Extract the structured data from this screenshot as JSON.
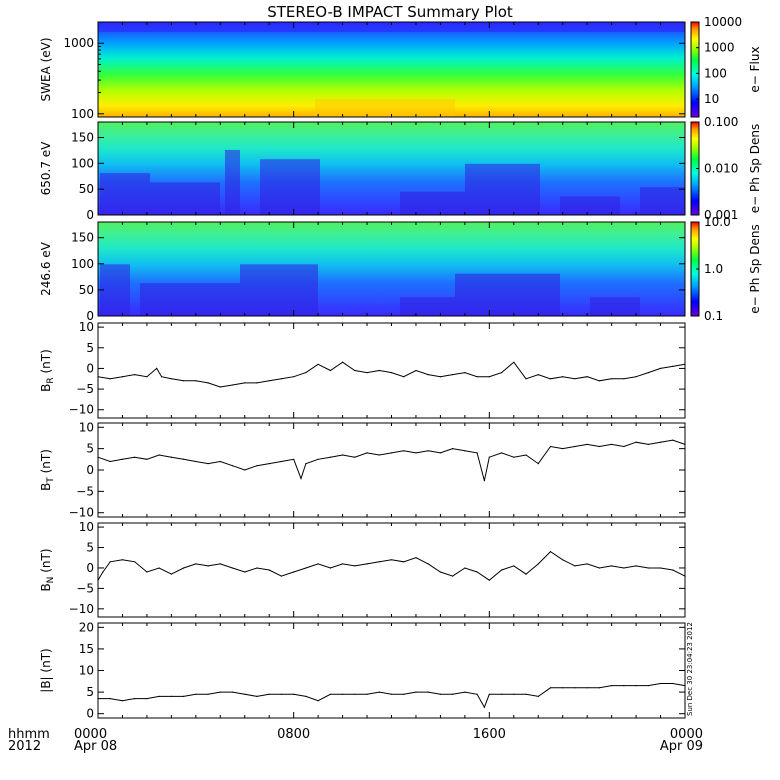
{
  "title": "STEREO-B IMPACT Summary Plot",
  "x_axis": {
    "row1_label": "hhmm",
    "row2_label": "2012",
    "ticks": [
      {
        "t": 0,
        "time": "0000",
        "date": "Apr 08"
      },
      {
        "t": 8,
        "time": "0800",
        "date": ""
      },
      {
        "t": 16,
        "time": "1600",
        "date": ""
      },
      {
        "t": 24,
        "time": "0000",
        "date": "Apr 09"
      }
    ]
  },
  "stamp": "Sun Dec 30 23:04:23 2012",
  "colors": {
    "line": "#000000",
    "frame": "#000000"
  },
  "chart_data": [
    {
      "type": "heatmap",
      "id": "swea",
      "ylabel": "SWEA (eV)",
      "y_scale": "log",
      "ylim": [
        90,
        2000
      ],
      "yticks": [
        {
          "v": 100,
          "label": "100"
        },
        {
          "v": 1000,
          "label": "1000"
        }
      ],
      "colorbar": {
        "label": "e− Flux",
        "scale": "log",
        "range": [
          2,
          10000
        ],
        "ticks": [
          {
            "v": 10,
            "label": "10"
          },
          {
            "v": 100,
            "label": "100"
          },
          {
            "v": 1000,
            "label": "1000"
          },
          {
            "v": 10000,
            "label": "10000"
          }
        ]
      }
    },
    {
      "type": "heatmap",
      "id": "pad650",
      "ylabel": "650.7 eV",
      "y_scale": "linear",
      "ylim": [
        0,
        180
      ],
      "yticks": [
        {
          "v": 0,
          "label": "0"
        },
        {
          "v": 50,
          "label": "50"
        },
        {
          "v": 100,
          "label": "100"
        },
        {
          "v": 150,
          "label": "150"
        }
      ],
      "colorbar": {
        "label": "e− Ph Sp Dens",
        "scale": "log",
        "range": [
          0.001,
          0.1
        ],
        "ticks": [
          {
            "v": 0.001,
            "label": "0.001"
          },
          {
            "v": 0.01,
            "label": "0.010"
          },
          {
            "v": 0.1,
            "label": "0.100"
          }
        ]
      }
    },
    {
      "type": "heatmap",
      "id": "pad246",
      "ylabel": "246.6 eV",
      "y_scale": "linear",
      "ylim": [
        0,
        180
      ],
      "yticks": [
        {
          "v": 0,
          "label": "0"
        },
        {
          "v": 50,
          "label": "50"
        },
        {
          "v": 100,
          "label": "100"
        },
        {
          "v": 150,
          "label": "150"
        }
      ],
      "colorbar": {
        "label": "e− Ph Sp Dens",
        "scale": "log",
        "range": [
          0.1,
          10
        ],
        "ticks": [
          {
            "v": 0.1,
            "label": "0.1"
          },
          {
            "v": 1,
            "label": "1.0"
          },
          {
            "v": 10,
            "label": "10.0"
          }
        ]
      }
    },
    {
      "type": "line",
      "id": "br",
      "ylabel_main": "B",
      "ylabel_sub": "R",
      "ylabel_unit": " (nT)",
      "ylim": [
        -12,
        11
      ],
      "yticks": [
        {
          "v": -10,
          "label": "−10"
        },
        {
          "v": -5,
          "label": "−5"
        },
        {
          "v": 0,
          "label": "0"
        },
        {
          "v": 5,
          "label": "5"
        },
        {
          "v": 10,
          "label": "10"
        }
      ],
      "x": [
        0,
        0.5,
        1,
        1.5,
        2,
        2.4,
        2.6,
        3,
        3.5,
        4,
        4.5,
        5,
        5.5,
        6,
        6.5,
        7,
        7.5,
        8,
        8.5,
        9,
        9.5,
        10,
        10.5,
        11,
        11.5,
        12,
        12.5,
        13,
        13.5,
        14,
        14.5,
        15,
        15.5,
        16,
        16.5,
        17,
        17.5,
        18,
        18.5,
        19,
        19.5,
        20,
        20.5,
        21,
        21.5,
        22,
        22.5,
        23,
        23.5,
        24
      ],
      "y": [
        -2,
        -2.5,
        -2,
        -1.5,
        -2,
        0,
        -2,
        -2.5,
        -3,
        -3,
        -3.5,
        -4.5,
        -4,
        -3.5,
        -3.5,
        -3,
        -2.5,
        -2,
        -1,
        1,
        -0.5,
        1.5,
        -0.5,
        -1,
        -0.5,
        -1,
        -2,
        -0.5,
        -1.5,
        -2,
        -1.5,
        -1,
        -2,
        -2,
        -1,
        1.5,
        -2.5,
        -1.5,
        -2.5,
        -2,
        -2.5,
        -2,
        -3,
        -2.5,
        -2.5,
        -2,
        -1,
        0,
        0.5,
        1
      ]
    },
    {
      "type": "line",
      "id": "bt",
      "ylabel_main": "B",
      "ylabel_sub": "T",
      "ylabel_unit": " (nT)",
      "ylim": [
        -11,
        11
      ],
      "yticks": [
        {
          "v": -10,
          "label": "−10"
        },
        {
          "v": -5,
          "label": "−5"
        },
        {
          "v": 0,
          "label": "0"
        },
        {
          "v": 5,
          "label": "5"
        },
        {
          "v": 10,
          "label": "10"
        }
      ],
      "x": [
        0,
        0.5,
        1,
        1.5,
        2,
        2.5,
        3,
        3.5,
        4,
        4.5,
        5,
        5.5,
        6,
        6.5,
        7,
        7.5,
        8,
        8.3,
        8.5,
        9,
        9.5,
        10,
        10.5,
        11,
        11.5,
        12,
        12.5,
        13,
        13.5,
        14,
        14.5,
        15,
        15.5,
        15.8,
        16,
        16.5,
        17,
        17.5,
        18,
        18.5,
        19,
        19.5,
        20,
        20.5,
        21,
        21.5,
        22,
        22.5,
        23,
        23.5,
        24
      ],
      "y": [
        3,
        2,
        2.5,
        3,
        2.5,
        3.5,
        3,
        2.5,
        2,
        1.5,
        2,
        1,
        0,
        1,
        1.5,
        2,
        2.5,
        -2,
        1.5,
        2.5,
        3,
        3.5,
        3,
        4,
        3.5,
        4,
        4.5,
        4,
        4.5,
        4,
        5,
        4.5,
        4,
        -2.5,
        3,
        4,
        3,
        3.5,
        1.5,
        5.5,
        5,
        5.5,
        6,
        5.5,
        6,
        5.5,
        6.5,
        6,
        6.5,
        7,
        6
      ]
    },
    {
      "type": "line",
      "id": "bn",
      "ylabel_main": "B",
      "ylabel_sub": "N",
      "ylabel_unit": " (nT)",
      "ylim": [
        -12,
        11
      ],
      "yticks": [
        {
          "v": -10,
          "label": "−10"
        },
        {
          "v": -5,
          "label": "−5"
        },
        {
          "v": 0,
          "label": "0"
        },
        {
          "v": 5,
          "label": "5"
        },
        {
          "v": 10,
          "label": "10"
        }
      ],
      "x": [
        0,
        0.2,
        0.5,
        1,
        1.5,
        2,
        2.5,
        3,
        3.5,
        4,
        4.5,
        5,
        5.5,
        6,
        6.5,
        7,
        7.5,
        8,
        8.5,
        9,
        9.5,
        10,
        10.5,
        11,
        11.5,
        12,
        12.5,
        13,
        13.5,
        14,
        14.5,
        15,
        15.5,
        16,
        16.5,
        17,
        17.5,
        18,
        18.5,
        19,
        19.5,
        20,
        20.5,
        21,
        21.5,
        22,
        22.5,
        23,
        23.5,
        24
      ],
      "y": [
        -3,
        -1,
        1.5,
        2,
        1.5,
        -1,
        0,
        -1.5,
        0,
        1,
        0.5,
        1,
        0,
        -1,
        0,
        -0.5,
        -2,
        -1,
        0,
        1,
        0,
        1,
        0.5,
        1,
        1.5,
        2,
        1.5,
        2.5,
        1,
        -1,
        -2,
        0,
        -1,
        -3,
        -0.5,
        0.5,
        -1.5,
        1,
        4,
        2,
        0.5,
        1,
        0,
        0.5,
        0,
        0.5,
        0,
        0,
        -0.5,
        -2
      ]
    },
    {
      "type": "line",
      "id": "bmag",
      "ylabel_main": "|B|",
      "ylabel_sub": "",
      "ylabel_unit": " (nT)",
      "ylim": [
        -1,
        21
      ],
      "yticks": [
        {
          "v": 0,
          "label": "0"
        },
        {
          "v": 5,
          "label": "5"
        },
        {
          "v": 10,
          "label": "10"
        },
        {
          "v": 15,
          "label": "15"
        },
        {
          "v": 20,
          "label": "20"
        }
      ],
      "x": [
        0,
        0.5,
        1,
        1.5,
        2,
        2.5,
        3,
        3.5,
        4,
        4.5,
        5,
        5.5,
        6,
        6.5,
        7,
        7.5,
        8,
        8.5,
        9,
        9.5,
        10,
        10.5,
        11,
        11.5,
        12,
        12.5,
        13,
        13.5,
        14,
        14.5,
        15,
        15.5,
        15.8,
        16,
        16.5,
        17,
        17.5,
        18,
        18.5,
        19,
        19.5,
        20,
        20.5,
        21,
        21.5,
        22,
        22.5,
        23,
        23.5,
        24
      ],
      "y": [
        3.5,
        3.5,
        3,
        3.5,
        3.5,
        4,
        4,
        4,
        4.5,
        4.5,
        5,
        5,
        4.5,
        4,
        4.5,
        4.5,
        4.5,
        4,
        3,
        4.5,
        4.5,
        4.5,
        4.5,
        5,
        4.5,
        4.5,
        5,
        5,
        4.5,
        4.5,
        5,
        4.5,
        1.5,
        4.5,
        4.5,
        4.5,
        4.5,
        4,
        6,
        6,
        6,
        6,
        6,
        6.5,
        6.5,
        6.5,
        6.5,
        7,
        7,
        6.5
      ]
    }
  ]
}
